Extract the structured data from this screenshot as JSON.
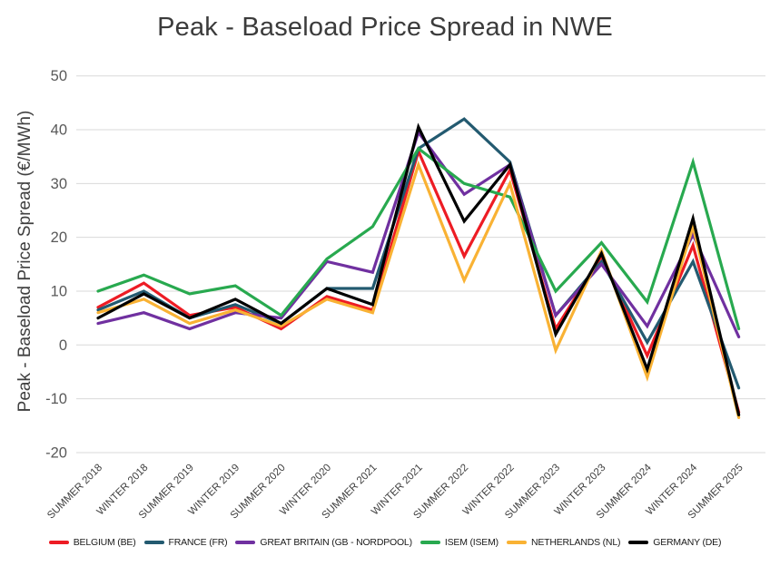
{
  "title": "Peak - Baseload Price Spread in NWE",
  "y_axis_label": "Peak - Baseload Price Spread (€/MWh)",
  "style": {
    "background": "#FFFFFF",
    "title_color": "#3B3B3B",
    "gridline_color": "#D9D9D9",
    "tick_label_color": "#595959",
    "axis_label_color": "#3F3F3F"
  },
  "chart_data": {
    "type": "line",
    "title": "Peak - Baseload Price Spread in NWE",
    "xlabel": "",
    "ylabel": "Peak - Baseload Price Spread (€/MWh)",
    "ylim": [
      -20,
      50
    ],
    "yticks": [
      50,
      40,
      30,
      20,
      10,
      0,
      -10,
      -20
    ],
    "grid": true,
    "legend_position": "bottom",
    "categories": [
      "SUMMER 2018",
      "WINTER 2018",
      "SUMMER 2019",
      "WINTER 2019",
      "SUMMER 2020",
      "WINTER 2020",
      "SUMMER 2021",
      "WINTER 2021",
      "SUMMER 2022",
      "WINTER 2022",
      "SUMMER 2023",
      "WINTER 2023",
      "SUMMER 2024",
      "WINTER 2024",
      "SUMMER 2025"
    ],
    "series": [
      {
        "name": "BELGIUM (BE)",
        "color": "#ED1C24",
        "values": [
          7,
          11.5,
          5.5,
          7,
          3,
          9,
          6.5,
          36,
          16.5,
          32.5,
          3,
          16.5,
          -2,
          18.5,
          -12.5
        ]
      },
      {
        "name": "FRANCE (FR)",
        "color": "#235A70",
        "values": [
          6.5,
          10,
          5,
          7.5,
          4,
          10.5,
          10.5,
          36.5,
          42,
          34,
          5.5,
          15.5,
          0.5,
          15.5,
          -8
        ]
      },
      {
        "name": "GREAT BRITAIN (GB - NORDPOOL)",
        "color": "#7030A0",
        "values": [
          4,
          6,
          3,
          6,
          5,
          15.5,
          13.5,
          39.5,
          28,
          33.5,
          5.5,
          15,
          3.5,
          20.5,
          1.5
        ]
      },
      {
        "name": "ISEM (ISEM)",
        "color": "#28A94F",
        "values": [
          10,
          13,
          9.5,
          11,
          5.5,
          16,
          22,
          36.5,
          30,
          27.5,
          10,
          19,
          8,
          34,
          3
        ]
      },
      {
        "name": "NETHERLANDS (NL)",
        "color": "#F9B234",
        "values": [
          6,
          8.5,
          4,
          6.5,
          3.5,
          8.5,
          6,
          33.5,
          12,
          30,
          -1,
          17.5,
          -6,
          22,
          -13.5
        ]
      },
      {
        "name": "GERMANY (DE)",
        "color": "#000000",
        "values": [
          5,
          9.5,
          5,
          8.5,
          4,
          10.5,
          7.5,
          40.5,
          23,
          33.5,
          2,
          17,
          -4.5,
          23.5,
          -13
        ]
      }
    ]
  }
}
